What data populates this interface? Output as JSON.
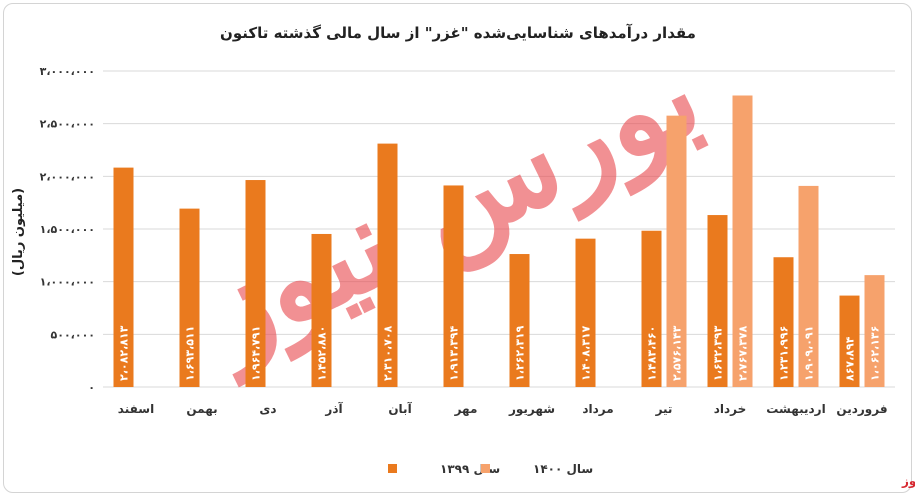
{
  "chart_data": {
    "type": "bar",
    "title": "مقدار درآمدهای شناسایی‌شده \"غزر\" از سال مالی گذشته تاکنون",
    "ylabel": "(میلیون ریال)",
    "xlabel": "",
    "ylim": [
      0,
      3000000
    ],
    "yticks": [
      0,
      500000,
      1000000,
      1500000,
      2000000,
      2500000,
      3000000
    ],
    "ytick_labels": [
      "۰",
      "۵۰۰،۰۰۰",
      "۱،۰۰۰،۰۰۰",
      "۱،۵۰۰،۰۰۰",
      "۲،۰۰۰،۰۰۰",
      "۲،۵۰۰،۰۰۰",
      "۳،۰۰۰،۰۰۰"
    ],
    "grid": true,
    "legend_position": "bottom",
    "categories": [
      "فروردین",
      "اردیبهشت",
      "خرداد",
      "تیر",
      "مرداد",
      "شهریور",
      "مهر",
      "آبان",
      "آذر",
      "دی",
      "بهمن",
      "اسفند"
    ],
    "series": [
      {
        "name": "سال ۱۳۹۹",
        "color": "#ea7a1e",
        "values": [
          867894,
          1231996,
          1632393,
          1483460,
          1408317,
          1262319,
          1913394,
          2310708,
          1452880,
          1964791,
          1693511,
          2082813
        ],
        "labels": [
          "۸۶۷،۸۹۴",
          "۱،۲۳۱،۹۹۶",
          "۱،۶۳۲،۳۹۳",
          "۱،۴۸۳،۴۶۰",
          "۱،۴۰۸،۳۱۷",
          "۱،۲۶۲،۳۱۹",
          "۱،۹۱۳،۳۹۴",
          "۲،۳۱۰،۷۰۸",
          "۱،۴۵۲،۸۸۰",
          "۱،۹۶۴،۷۹۱",
          "۱،۶۹۳،۵۱۱",
          "۲،۰۸۲،۸۱۳"
        ]
      },
      {
        "name": "سال ۱۴۰۰",
        "color": "#f6a26c",
        "values": [
          1062136,
          1909091,
          2767378,
          2576143,
          null,
          null,
          null,
          null,
          null,
          null,
          null,
          null
        ],
        "labels": [
          "۱،۰۶۲،۱۳۶",
          "۱،۹۰۹،۰۹۱",
          "۲،۷۶۷،۳۷۸",
          "۲،۵۷۶،۱۴۳",
          "",
          "",
          "",
          "",
          "",
          "",
          "",
          ""
        ]
      }
    ]
  },
  "watermark": {
    "text": "بورس نیوز",
    "color": "#e8484d"
  },
  "brand": {
    "text": "بورس‌نیوز",
    "color": "#d6282f"
  }
}
